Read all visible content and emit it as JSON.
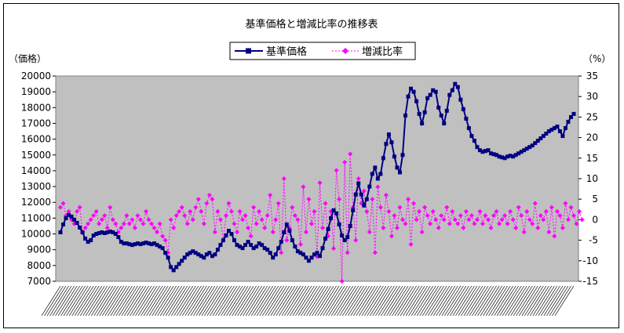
{
  "chart_data": {
    "type": "line",
    "title": "基準価格と増減比率の推移表",
    "y_left_label": "（価格）",
    "y_right_label": "（%）",
    "y_left_range": [
      7000,
      20000
    ],
    "y_right_range": [
      -15,
      35
    ],
    "y_left_ticks": [
      "20000",
      "19000",
      "18000",
      "17000",
      "16000",
      "15000",
      "14000",
      "13000",
      "12000",
      "11000",
      "10000",
      "9000",
      "8000",
      "7000"
    ],
    "y_right_ticks": [
      "35",
      "30",
      "25",
      "20",
      "15",
      "10",
      "5",
      "0",
      "-5",
      "-10",
      "-15"
    ],
    "legend_position": "top-center",
    "grid": false,
    "plot_background": "#c0c0c0",
    "series": [
      {
        "name": "基準価格",
        "axis": "left",
        "color": "#000080",
        "marker": "square",
        "values": [
          10100,
          10600,
          11000,
          11200,
          11100,
          10900,
          10700,
          10400,
          10100,
          9700,
          9500,
          9600,
          9900,
          10000,
          10050,
          10100,
          10050,
          10100,
          10150,
          10100,
          10000,
          9800,
          9500,
          9400,
          9400,
          9350,
          9300,
          9350,
          9400,
          9350,
          9400,
          9450,
          9400,
          9350,
          9400,
          9300,
          9200,
          9100,
          8800,
          8500,
          7900,
          7700,
          7900,
          8100,
          8300,
          8500,
          8700,
          8800,
          8900,
          8800,
          8700,
          8600,
          8500,
          8700,
          8800,
          8600,
          8700,
          9000,
          9300,
          9600,
          9900,
          10200,
          10000,
          9600,
          9300,
          9200,
          9100,
          9300,
          9500,
          9300,
          9100,
          9200,
          9400,
          9300,
          9100,
          9000,
          8800,
          8500,
          8700,
          9100,
          9500,
          10100,
          10600,
          10200,
          9600,
          9200,
          8900,
          8800,
          8700,
          8500,
          8300,
          8500,
          8700,
          8800,
          8600,
          9100,
          9700,
          10300,
          11000,
          11500,
          11300,
          10600,
          9900,
          9600,
          9800,
          10500,
          11500,
          12500,
          13200,
          12500,
          11800,
          12200,
          13000,
          13800,
          14200,
          13500,
          13800,
          14800,
          15700,
          16300,
          15800,
          14900,
          14200,
          13900,
          15000,
          17500,
          18700,
          19200,
          19000,
          18400,
          17600,
          17000,
          17700,
          18600,
          18800,
          19100,
          19000,
          18000,
          17500,
          17000,
          17800,
          18800,
          19100,
          19500,
          19300,
          18500,
          17900,
          17300,
          16700,
          16200,
          15900,
          15500,
          15300,
          15200,
          15250,
          15300,
          15100,
          15050,
          15000,
          14900,
          14850,
          14800,
          14900,
          14950,
          14900,
          15000,
          15100,
          15200,
          15300,
          15400,
          15500,
          15600,
          15750,
          15900,
          16050,
          16200,
          16350,
          16500,
          16600,
          16700,
          16800,
          16500,
          16200,
          16700,
          17100,
          17400,
          17600
        ]
      },
      {
        "name": "増減比率",
        "axis": "right",
        "color": "#ff00ff",
        "marker": "diamond",
        "values": [
          3,
          4,
          1,
          2,
          0,
          -1,
          2,
          3,
          -3,
          -2,
          -1,
          0,
          1,
          2,
          -1,
          0,
          1,
          -2,
          3,
          0,
          -1,
          -3,
          -2,
          -1,
          1,
          -1,
          0,
          -2,
          1,
          0,
          -1,
          2,
          0,
          -1,
          -2,
          -3,
          -1,
          -4,
          -5,
          -8,
          0,
          -2,
          1,
          2,
          3,
          1,
          -1,
          2,
          0,
          3,
          5,
          2,
          -1,
          4,
          6,
          5,
          -3,
          2,
          0,
          -5,
          1,
          4,
          2,
          -1,
          -3,
          2,
          0,
          1,
          -2,
          -4,
          3,
          -1,
          2,
          0,
          -2,
          1,
          6,
          -3,
          0,
          4,
          -8,
          10,
          -5,
          -2,
          3,
          1,
          0,
          -6,
          8,
          -3,
          5,
          -1,
          2,
          -9,
          9,
          -2,
          4,
          -4,
          2,
          -7,
          12,
          5,
          -15,
          14,
          -8,
          16,
          3,
          -5,
          10,
          4,
          7,
          2,
          -3,
          5,
          -8,
          8,
          3,
          -2,
          6,
          2,
          -4,
          1,
          -2,
          3,
          0,
          -1,
          5,
          -6,
          4,
          0,
          2,
          -3,
          3,
          1,
          -1,
          2,
          0,
          -2,
          1,
          0,
          3,
          -1,
          2,
          0,
          -1,
          1,
          -2,
          2,
          0,
          1,
          -1,
          0,
          2,
          -1,
          1,
          0,
          -2,
          1,
          2,
          -1,
          0,
          1,
          -1,
          2,
          0,
          -2,
          3,
          1,
          -3,
          2,
          0,
          -1,
          4,
          -2,
          1,
          0,
          2,
          -3,
          3,
          -4,
          2,
          1,
          -2,
          4,
          0,
          3,
          1,
          -1,
          2,
          0
        ]
      }
    ]
  }
}
